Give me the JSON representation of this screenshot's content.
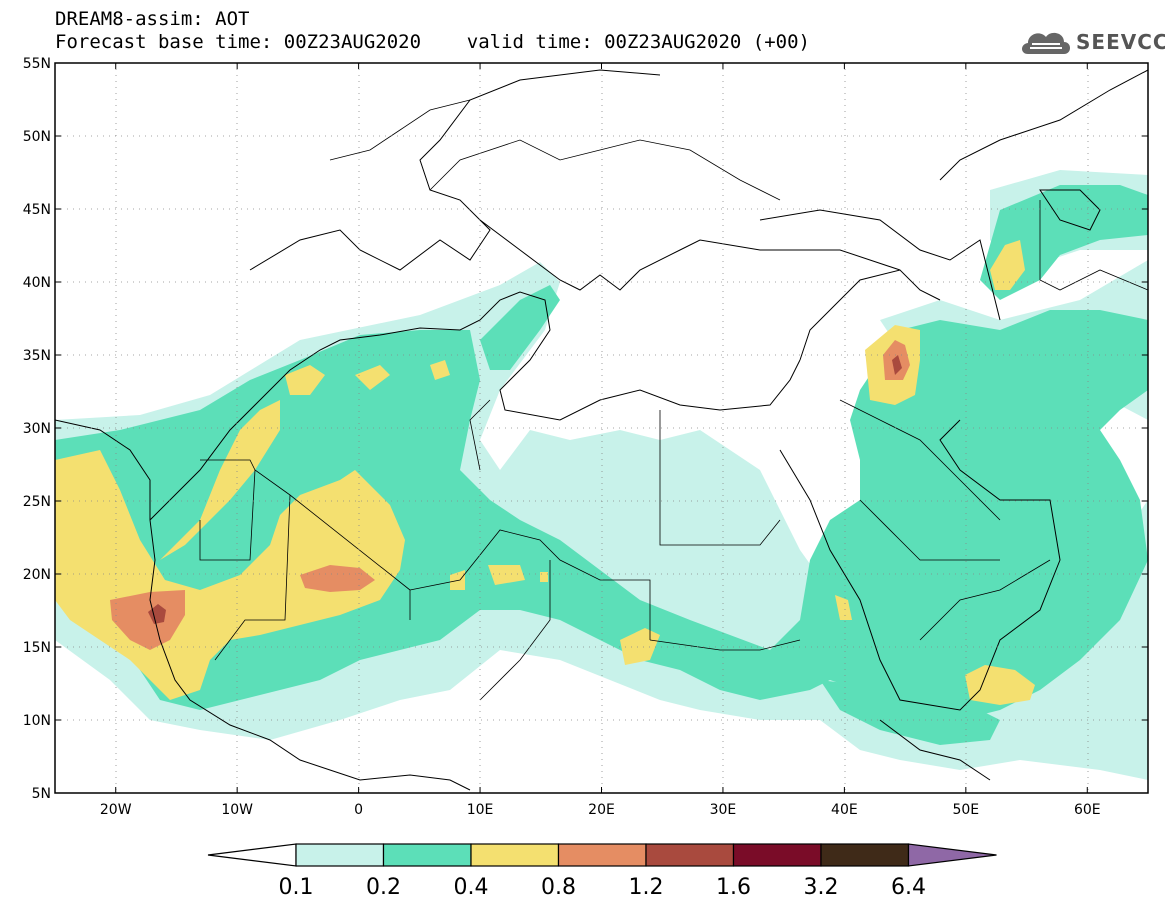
{
  "header": {
    "line1": "DREAM8-assim: AOT",
    "line2": "Forecast base time: 00Z23AUG2020    valid time: 00Z23AUG2020 (+00)"
  },
  "logo": {
    "text": "SEEVCCC",
    "icon": "cloud-icon"
  },
  "map": {
    "lon_range": [
      -25,
      65
    ],
    "lat_range": [
      5,
      55
    ],
    "lat_labels": [
      "55N",
      "50N",
      "45N",
      "40N",
      "35N",
      "30N",
      "25N",
      "20N",
      "15N",
      "10N",
      "5N"
    ],
    "lon_labels": [
      "20W",
      "10W",
      "0",
      "10E",
      "20E",
      "30E",
      "40E",
      "50E",
      "60E"
    ]
  },
  "colorbar": {
    "labels": [
      "0.1",
      "0.2",
      "0.4",
      "0.8",
      "1.2",
      "1.6",
      "3.2",
      "6.4"
    ],
    "colors": [
      "#ffffff",
      "#c8f2ea",
      "#5cdfb8",
      "#f4e070",
      "#e58d63",
      "#a94a3e",
      "#7a0c28",
      "#3f2a18",
      "#8f68a6"
    ]
  },
  "colors": {
    "aot_0_1": "#c8f2ea",
    "aot_0_2": "#5cdfb8",
    "aot_0_4": "#f4e070",
    "aot_0_8": "#e58d63",
    "aot_1_2": "#a94a3e"
  }
}
